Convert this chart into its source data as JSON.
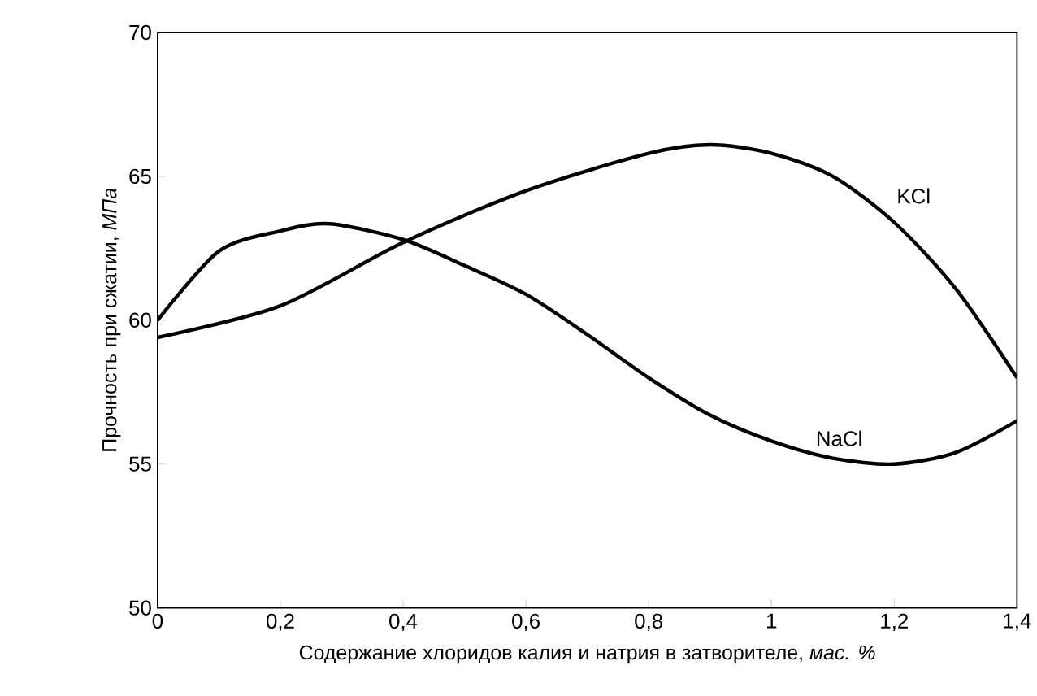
{
  "chart_data": {
    "type": "line",
    "xlabel": "Содержание хлоридов калия и натрия в затворителе, *мас. %*",
    "ylabel": "Прочность при сжатии, *МПа*",
    "xlim": [
      0,
      1.4
    ],
    "ylim": [
      50,
      70
    ],
    "xticks": [
      0,
      {
        "value": 0.2,
        "label": "0,2"
      },
      {
        "value": 0.4,
        "label": "0,4"
      },
      {
        "value": 0.6,
        "label": "0,6"
      },
      {
        "value": 0.8,
        "label": "0,8"
      },
      1,
      {
        "value": 1.2,
        "label": "1,2"
      },
      {
        "value": 1.4,
        "label": "1,4"
      }
    ],
    "yticks": [
      50,
      55,
      60,
      65,
      70
    ],
    "grid": false,
    "legend": false,
    "marker": "none",
    "line_style": "solid",
    "series": [
      {
        "name": "KCl",
        "color": "#000000",
        "x": [
          0,
          0.2,
          0.4,
          0.6,
          0.8,
          0.9,
          1.0,
          1.1,
          1.2,
          1.3,
          1.4
        ],
        "values": [
          59.4,
          60.5,
          62.7,
          64.5,
          65.8,
          66.1,
          65.8,
          65.0,
          63.4,
          61.1,
          58.0
        ]
      },
      {
        "name": "NaCl",
        "color": "#000000",
        "x": [
          0,
          0.1,
          0.2,
          0.28,
          0.4,
          0.5,
          0.6,
          0.7,
          0.8,
          0.9,
          1.0,
          1.1,
          1.2,
          1.3,
          1.4
        ],
        "values": [
          60.0,
          62.4,
          63.1,
          63.35,
          62.8,
          61.9,
          60.9,
          59.5,
          58.0,
          56.7,
          55.8,
          55.2,
          55.0,
          55.4,
          56.5
        ]
      }
    ]
  }
}
